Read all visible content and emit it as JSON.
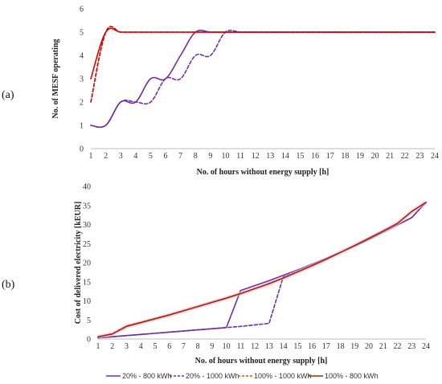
{
  "chart_data": [
    {
      "panel": "(a)",
      "type": "line",
      "xlabel": "No. of hours without energy supply [h]",
      "ylabel": "No. of MESF operating",
      "xlim": [
        1,
        24
      ],
      "ylim": [
        0,
        6
      ],
      "xticks": [
        1,
        2,
        3,
        4,
        5,
        6,
        7,
        8,
        9,
        10,
        11,
        12,
        13,
        14,
        15,
        16,
        17,
        18,
        19,
        20,
        21,
        22,
        23,
        24
      ],
      "yticks": [
        0,
        1,
        2,
        3,
        4,
        5,
        6
      ],
      "grid": false,
      "smooth": true,
      "series": [
        {
          "name": "20% - 800 kWh",
          "color": "#7030a0",
          "dash": "solid",
          "x": [
            1,
            2,
            3,
            4,
            5,
            6,
            7,
            8,
            9,
            10,
            11,
            12,
            13,
            14,
            15,
            16,
            17,
            18,
            19,
            20,
            21,
            22,
            23,
            24
          ],
          "y": [
            1,
            1,
            2,
            2,
            3,
            3,
            4,
            5,
            5,
            5,
            5,
            5,
            5,
            5,
            5,
            5,
            5,
            5,
            5,
            5,
            5,
            5,
            5,
            5
          ]
        },
        {
          "name": "20% - 1000 kWh",
          "color": "#7030a0",
          "dash": "dashed",
          "x": [
            1,
            2,
            3,
            4,
            5,
            6,
            7,
            8,
            9,
            10,
            11,
            12,
            13,
            14,
            15,
            16,
            17,
            18,
            19,
            20,
            21,
            22,
            23,
            24
          ],
          "y": [
            1,
            1,
            2,
            2,
            2,
            3,
            3,
            4,
            4,
            5,
            5,
            5,
            5,
            5,
            5,
            5,
            5,
            5,
            5,
            5,
            5,
            5,
            5,
            5
          ]
        },
        {
          "name": "100% - 1000 kWh",
          "color": "#c00000",
          "dash": "dashed",
          "x": [
            1,
            2,
            3,
            4,
            5,
            6,
            7,
            8,
            9,
            10,
            11,
            12,
            13,
            14,
            15,
            16,
            17,
            18,
            19,
            20,
            21,
            22,
            23,
            24
          ],
          "y": [
            2,
            5,
            5,
            5,
            5,
            5,
            5,
            5,
            5,
            5,
            5,
            5,
            5,
            5,
            5,
            5,
            5,
            5,
            5,
            5,
            5,
            5,
            5,
            5
          ]
        },
        {
          "name": "100% - 800 kWh",
          "color": "#e00000",
          "dash": "solid",
          "x": [
            1,
            2,
            3,
            4,
            5,
            6,
            7,
            8,
            9,
            10,
            11,
            12,
            13,
            14,
            15,
            16,
            17,
            18,
            19,
            20,
            21,
            22,
            23,
            24
          ],
          "y": [
            3,
            5,
            5,
            5,
            5,
            5,
            5,
            5,
            5,
            5,
            5,
            5,
            5,
            5,
            5,
            5,
            5,
            5,
            5,
            5,
            5,
            5,
            5,
            5
          ]
        }
      ]
    },
    {
      "panel": "(b)",
      "type": "line",
      "xlabel": "No. of hours without energy supply [h]",
      "ylabel": "Cost of delivered electricity [kEUR]",
      "xlim": [
        1,
        24
      ],
      "ylim": [
        0,
        40
      ],
      "xticks": [
        1,
        2,
        3,
        4,
        5,
        6,
        7,
        8,
        9,
        10,
        11,
        12,
        13,
        14,
        15,
        16,
        17,
        18,
        19,
        20,
        21,
        22,
        23,
        24
      ],
      "yticks": [
        0,
        5,
        10,
        15,
        20,
        25,
        30,
        35,
        40
      ],
      "grid": false,
      "smooth": false,
      "series": [
        {
          "name": "20% - 800 kWh",
          "color": "#7030a0",
          "dash": "solid",
          "x": [
            1,
            2,
            3,
            4,
            5,
            6,
            7,
            8,
            9,
            10,
            11,
            12,
            13,
            14,
            15,
            16,
            17,
            18,
            19,
            20,
            21,
            22,
            23,
            24
          ],
          "y": [
            0.3,
            0.6,
            0.9,
            1.2,
            1.5,
            1.8,
            2.1,
            2.4,
            2.7,
            3.0,
            12.7,
            14.0,
            15.3,
            16.7,
            18.1,
            19.6,
            21.1,
            22.7,
            24.4,
            26.1,
            28.0,
            29.9,
            31.8,
            35.8
          ]
        },
        {
          "name": "20% - 1000 kWh",
          "color": "#7030a0",
          "dash": "dashed",
          "x": [
            1,
            2,
            3,
            4,
            5,
            6,
            7,
            8,
            9,
            10,
            11,
            12,
            13,
            14,
            15,
            16,
            17,
            18,
            19,
            20,
            21,
            22,
            23,
            24
          ],
          "y": [
            0.3,
            0.6,
            0.9,
            1.2,
            1.5,
            1.8,
            2.1,
            2.4,
            2.7,
            3.0,
            3.3,
            3.7,
            4.1,
            16.4,
            18.1,
            19.6,
            21.1,
            22.7,
            24.4,
            26.1,
            28.0,
            29.9,
            31.8,
            35.8
          ]
        },
        {
          "name": "100% - 1000 kWh",
          "color": "#c55a11",
          "dash": "dashed",
          "x": [
            1,
            2,
            3,
            4,
            5,
            6,
            7,
            8,
            9,
            10,
            11,
            12,
            13,
            14,
            15,
            16,
            17,
            18,
            19,
            20,
            21,
            22,
            23,
            24
          ],
          "y": [
            0.6,
            1.4,
            3.5,
            4.4,
            5.4,
            6.4,
            7.5,
            8.6,
            9.7,
            10.8,
            12.0,
            13.2,
            14.6,
            16.0,
            17.6,
            19.2,
            20.9,
            22.7,
            24.5,
            26.4,
            28.3,
            30.3,
            33.4,
            35.8
          ]
        },
        {
          "name": "100% - 800 kWh",
          "color": "#a52a00",
          "dash": "solid",
          "x": [
            1,
            2,
            3,
            4,
            5,
            6,
            7,
            8,
            9,
            10,
            11,
            12,
            13,
            14,
            15,
            16,
            17,
            18,
            19,
            20,
            21,
            22,
            23,
            24
          ],
          "y": [
            0.6,
            1.3,
            3.3,
            4.3,
            5.3,
            6.3,
            7.4,
            8.5,
            9.6,
            10.7,
            11.9,
            13.2,
            14.5,
            16.0,
            17.6,
            19.2,
            20.9,
            22.7,
            24.5,
            26.4,
            28.3,
            30.3,
            33.4,
            35.8
          ]
        }
      ]
    }
  ]
}
